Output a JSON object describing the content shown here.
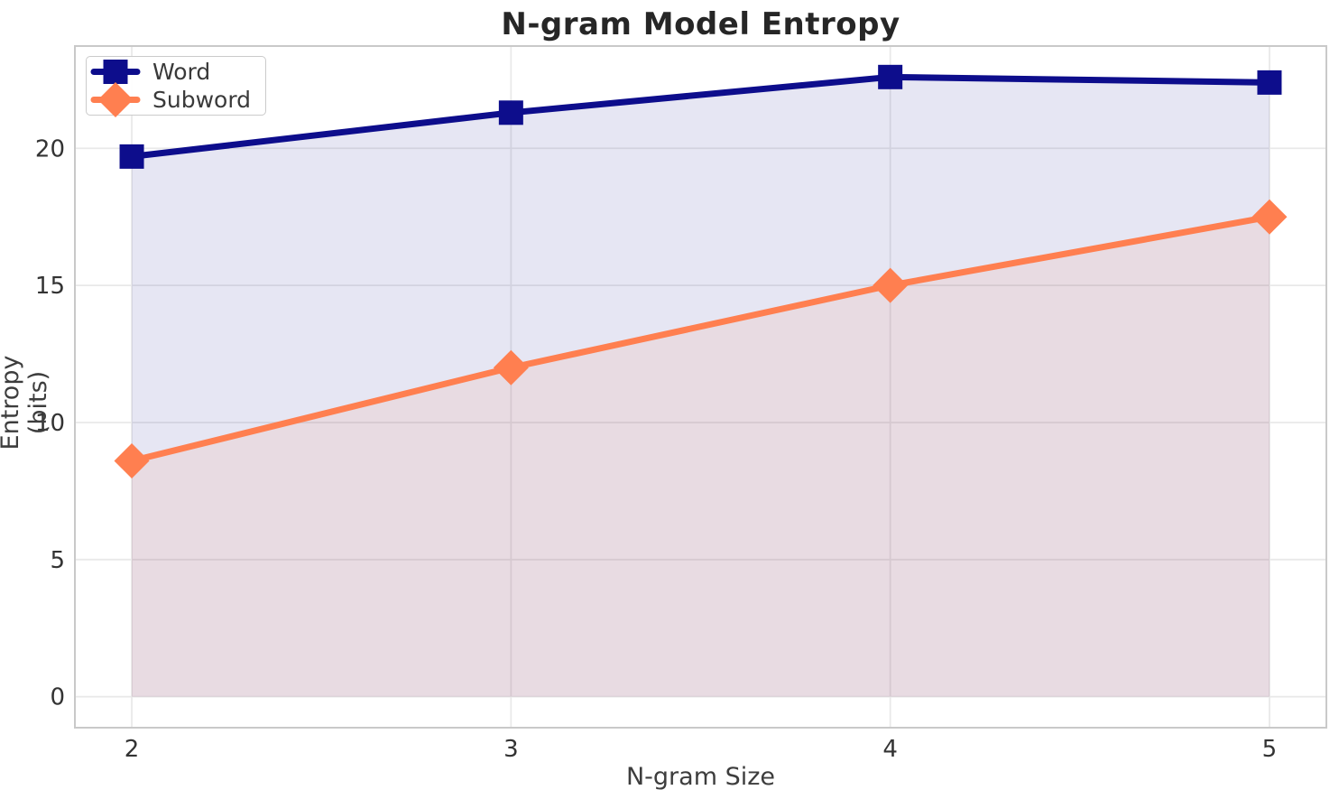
{
  "chart_data": {
    "type": "line",
    "title": "N-gram Model Entropy",
    "xlabel": "N-gram Size",
    "ylabel": "Entropy (bits)",
    "x": [
      2,
      3,
      4,
      5
    ],
    "series": [
      {
        "name": "Word",
        "color": "#0d0d8c",
        "marker": "square",
        "values": [
          19.7,
          21.3,
          22.6,
          22.4
        ]
      },
      {
        "name": "Subword",
        "color": "#ff7f50",
        "marker": "diamond",
        "values": [
          8.6,
          12.0,
          15.0,
          17.5
        ]
      }
    ],
    "fill_to_zero": true,
    "fill_alpha": 0.1,
    "x_ticks": [
      2,
      3,
      4,
      5
    ],
    "y_ticks": [
      0,
      5,
      10,
      15,
      20
    ],
    "xlim": [
      1.85,
      5.15
    ],
    "ylim": [
      -1.13,
      23.73
    ],
    "grid": true,
    "legend_position": "upper-left",
    "colors": {
      "grid": "#e9e9e9",
      "spine": "#c9c9c9",
      "tick_text": "#333333",
      "label_text": "#3d3d3d",
      "title_text": "#262626",
      "background": "#ffffff"
    }
  }
}
